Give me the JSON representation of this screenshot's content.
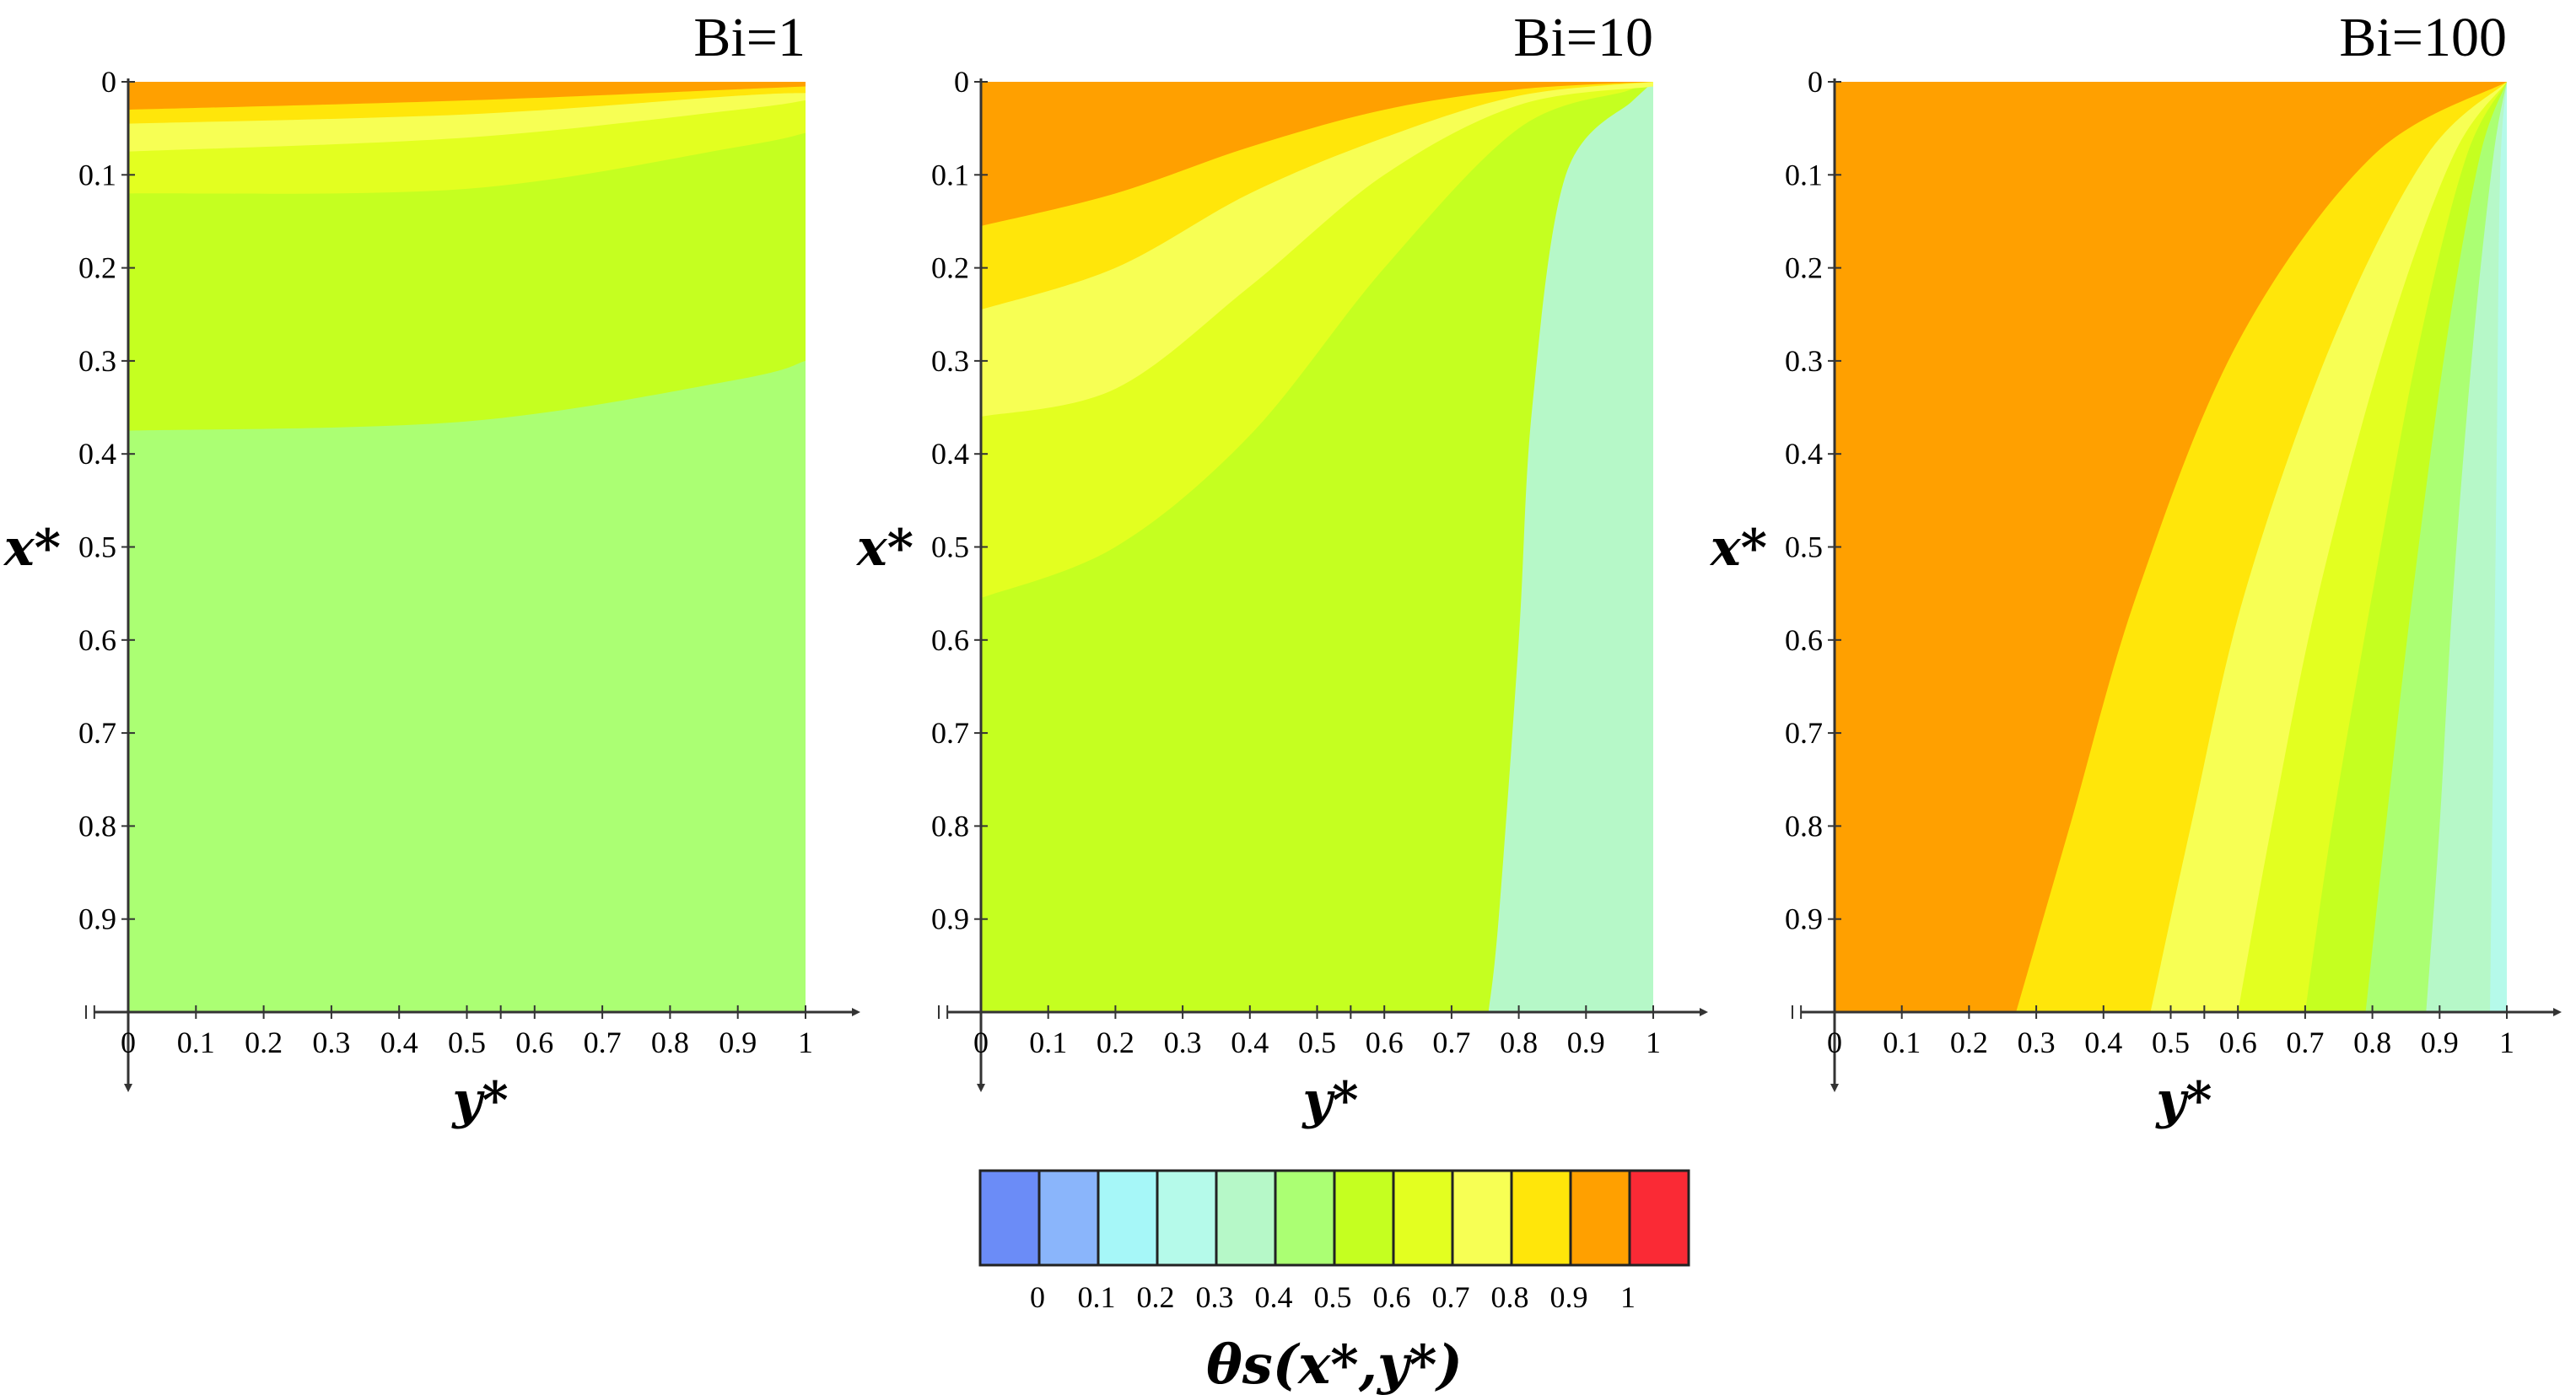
{
  "chart_data": {
    "type": "contour",
    "panels": [
      {
        "title": "Bi=1",
        "xlabel": "y*",
        "ylabel": "x*",
        "xlim": [
          0,
          1
        ],
        "ylim": [
          0,
          1
        ],
        "x_ticks": [
          "0",
          "0.1",
          "0.2",
          "0.3",
          "0.4",
          "0.5",
          "0.6",
          "0.7",
          "0.8",
          "0.9",
          "1"
        ],
        "y_ticks": [
          "0",
          "0.1",
          "0.2",
          "0.3",
          "0.4",
          "0.5",
          "0.6",
          "0.7",
          "0.8",
          "0.9"
        ],
        "contour_boundaries": [
          {
            "level": 0.9,
            "points": [
              [
                0,
                0.03
              ],
              [
                0.5,
                0.02
              ],
              [
                0.9,
                0.008
              ],
              [
                1,
                0.005
              ]
            ]
          },
          {
            "level": 0.8,
            "points": [
              [
                0,
                0.045
              ],
              [
                0.5,
                0.035
              ],
              [
                0.9,
                0.015
              ],
              [
                1,
                0.012
              ]
            ]
          },
          {
            "level": 0.7,
            "points": [
              [
                0,
                0.075
              ],
              [
                0.5,
                0.06
              ],
              [
                0.9,
                0.03
              ],
              [
                1,
                0.02
              ]
            ]
          },
          {
            "level": 0.6,
            "points": [
              [
                0,
                0.12
              ],
              [
                0.5,
                0.115
              ],
              [
                0.9,
                0.07
              ],
              [
                1,
                0.055
              ]
            ]
          },
          {
            "level": 0.5,
            "points": [
              [
                0,
                0.375
              ],
              [
                0.5,
                0.365
              ],
              [
                0.9,
                0.32
              ],
              [
                1,
                0.3
              ]
            ]
          }
        ]
      },
      {
        "title": "Bi=10",
        "xlabel": "y*",
        "ylabel": "x*",
        "xlim": [
          0,
          1
        ],
        "ylim": [
          0,
          1
        ],
        "x_ticks": [
          "0",
          "0.1",
          "0.2",
          "0.3",
          "0.4",
          "0.5",
          "0.6",
          "0.7",
          "0.8",
          "0.9",
          "1"
        ],
        "y_ticks": [
          "0",
          "0.1",
          "0.2",
          "0.3",
          "0.4",
          "0.5",
          "0.6",
          "0.7",
          "0.8",
          "0.9"
        ],
        "contour_boundaries": [
          {
            "level": 0.9,
            "points": [
              [
                0,
                0.155
              ],
              [
                0.2,
                0.12
              ],
              [
                0.4,
                0.07
              ],
              [
                0.6,
                0.03
              ],
              [
                0.8,
                0.008
              ],
              [
                1,
                0
              ]
            ]
          },
          {
            "level": 0.8,
            "points": [
              [
                0,
                0.245
              ],
              [
                0.2,
                0.2
              ],
              [
                0.4,
                0.12
              ],
              [
                0.6,
                0.06
              ],
              [
                0.8,
                0.015
              ],
              [
                1,
                0
              ]
            ]
          },
          {
            "level": 0.7,
            "points": [
              [
                0,
                0.36
              ],
              [
                0.2,
                0.33
              ],
              [
                0.4,
                0.22
              ],
              [
                0.6,
                0.1
              ],
              [
                0.8,
                0.025
              ],
              [
                1,
                0.005
              ]
            ]
          },
          {
            "level": 0.6,
            "points": [
              [
                0,
                0.555
              ],
              [
                0.2,
                0.5
              ],
              [
                0.4,
                0.38
              ],
              [
                0.6,
                0.2
              ],
              [
                0.8,
                0.05
              ],
              [
                0.96,
                0.01
              ]
            ]
          },
          {
            "level": 0.5,
            "points": [
              [
                0.97,
                0.02
              ],
              [
                0.87,
                0.1
              ],
              [
                0.82,
                0.35
              ],
              [
                0.8,
                0.6
              ],
              [
                0.77,
                0.9
              ],
              [
                0.755,
                1
              ]
            ]
          },
          {
            "level": 0.4,
            "points": [
              [
                1,
                0.02
              ],
              [
                0.98,
                0.06
              ],
              [
                0.95,
                0.15
              ],
              [
                0.98,
                0.2
              ],
              [
                1,
                0.23
              ]
            ]
          }
        ]
      },
      {
        "title": "Bi=100",
        "xlabel": "y*",
        "ylabel": "x*",
        "xlim": [
          0,
          1
        ],
        "ylim": [
          0,
          1
        ],
        "x_ticks": [
          "0",
          "0.1",
          "0.2",
          "0.3",
          "0.4",
          "0.5",
          "0.6",
          "0.7",
          "0.8",
          "0.9",
          "1"
        ],
        "y_ticks": [
          "0",
          "0.1",
          "0.2",
          "0.3",
          "0.4",
          "0.5",
          "0.6",
          "0.7",
          "0.8",
          "0.9"
        ],
        "contour_boundaries": [
          {
            "level": 0.9,
            "points": [
              [
                1,
                0
              ],
              [
                0.8,
                0.08
              ],
              [
                0.6,
                0.28
              ],
              [
                0.45,
                0.55
              ],
              [
                0.35,
                0.8
              ],
              [
                0.27,
                1
              ]
            ]
          },
          {
            "level": 0.8,
            "points": [
              [
                1,
                0
              ],
              [
                0.88,
                0.08
              ],
              [
                0.74,
                0.28
              ],
              [
                0.61,
                0.55
              ],
              [
                0.53,
                0.8
              ],
              [
                0.47,
                1
              ]
            ]
          },
          {
            "level": 0.7,
            "points": [
              [
                1,
                0
              ],
              [
                0.92,
                0.08
              ],
              [
                0.82,
                0.28
              ],
              [
                0.72,
                0.55
              ],
              [
                0.65,
                0.8
              ],
              [
                0.6,
                1
              ]
            ]
          },
          {
            "level": 0.6,
            "points": [
              [
                1,
                0
              ],
              [
                0.94,
                0.08
              ],
              [
                0.87,
                0.28
              ],
              [
                0.8,
                0.55
              ],
              [
                0.74,
                0.8
              ],
              [
                0.7,
                1
              ]
            ]
          },
          {
            "level": 0.5,
            "points": [
              [
                1,
                0
              ],
              [
                0.96,
                0.08
              ],
              [
                0.91,
                0.28
              ],
              [
                0.86,
                0.55
              ],
              [
                0.82,
                0.8
              ],
              [
                0.79,
                1
              ]
            ]
          },
          {
            "level": 0.4,
            "points": [
              [
                1,
                0
              ],
              [
                0.98,
                0.08
              ],
              [
                0.95,
                0.28
              ],
              [
                0.92,
                0.55
              ],
              [
                0.9,
                0.8
              ],
              [
                0.88,
                1
              ]
            ]
          },
          {
            "level": 0.3,
            "points": [
              [
                1,
                0
              ],
              [
                0.99,
                0.1
              ],
              [
                0.985,
                0.4
              ],
              [
                0.98,
                0.7
              ],
              [
                0.975,
                1
              ]
            ]
          }
        ]
      }
    ],
    "colorbar": {
      "label": "θs(x*,y*)",
      "ticks": [
        "0",
        "0.1",
        "0.2",
        "0.3",
        "0.4",
        "0.5",
        "0.6",
        "0.7",
        "0.8",
        "0.9",
        "1"
      ],
      "colors": [
        "#6b8cf7",
        "#8ab5fb",
        "#a6f7f8",
        "#b5faea",
        "#b6f8c8",
        "#abff73",
        "#c5ff20",
        "#e3ff20",
        "#f7ff54",
        "#ffe60a",
        "#ffa000",
        "#fa2a35"
      ]
    }
  }
}
